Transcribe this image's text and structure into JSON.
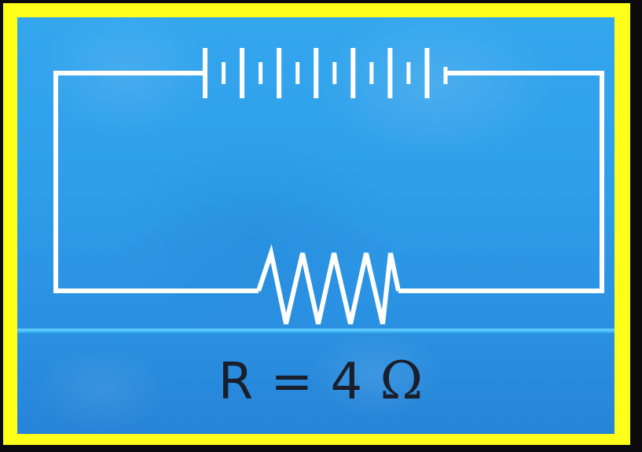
{
  "diagram": {
    "type": "circuit",
    "elements": [
      {
        "kind": "battery",
        "position": "top",
        "cells": 12
      },
      {
        "kind": "resistor",
        "position": "bottom"
      }
    ],
    "resistance_label": {
      "symbol": "R",
      "equals": "=",
      "value": "4",
      "unit": "Ω"
    }
  },
  "colors": {
    "frame_border": "#ffff1a",
    "background": "#2a98e6",
    "wire": "#ffffff",
    "label_text": "#1a1f2b"
  }
}
